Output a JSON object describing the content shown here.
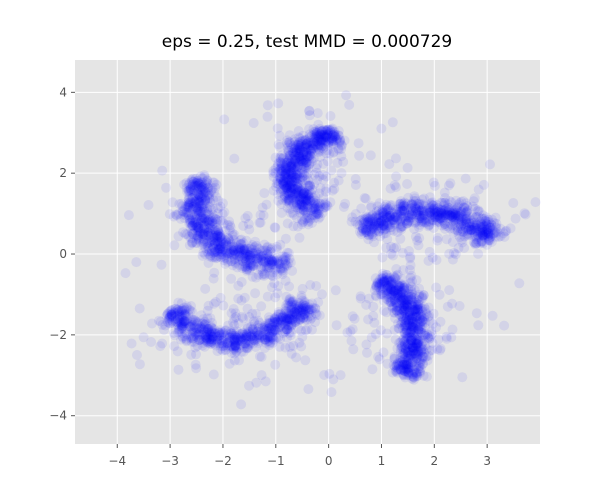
{
  "chart_data": {
    "type": "scatter",
    "title": "eps = 0.25, test MMD = 0.000729",
    "xlabel": "",
    "ylabel": "",
    "xlim": [
      -4.8,
      4.0
    ],
    "ylim": [
      -4.7,
      4.8
    ],
    "xticks": [
      -4,
      -3,
      -2,
      -1,
      0,
      1,
      2,
      3
    ],
    "yticks": [
      -4,
      -2,
      0,
      2,
      4
    ],
    "xtick_labels": [
      "−4",
      "−3",
      "−2",
      "−1",
      "0",
      "1",
      "2",
      "3"
    ],
    "ytick_labels": [
      "−4",
      "−2",
      "0",
      "2",
      "4"
    ],
    "grid": true,
    "legend": false,
    "style": "ggplot",
    "series": [
      {
        "marker_color": "#0000ff",
        "marker_alpha": 0.08,
        "description_shape": "five-arm pinwheel",
        "arms": [
          {
            "points": [
              [
                0.2,
                2.95
              ],
              [
                -0.3,
                2.8
              ],
              [
                -0.65,
                2.4
              ],
              [
                -0.75,
                1.95
              ],
              [
                -0.7,
                1.55
              ],
              [
                -0.4,
                1.2
              ],
              [
                -0.15,
                1.05
              ]
            ]
          },
          {
            "points": [
              [
                3.1,
                0.35
              ],
              [
                2.8,
                0.7
              ],
              [
                2.3,
                0.95
              ],
              [
                1.8,
                1.05
              ],
              [
                1.3,
                1.0
              ],
              [
                0.9,
                0.8
              ],
              [
                0.6,
                0.6
              ]
            ]
          },
          {
            "points": [
              [
                1.45,
                -3.0
              ],
              [
                1.6,
                -2.45
              ],
              [
                1.65,
                -1.8
              ],
              [
                1.55,
                -1.3
              ],
              [
                1.3,
                -0.9
              ],
              [
                1.0,
                -0.6
              ]
            ]
          },
          {
            "points": [
              [
                -3.0,
                -1.4
              ],
              [
                -2.5,
                -1.95
              ],
              [
                -1.9,
                -2.15
              ],
              [
                -1.3,
                -2.05
              ],
              [
                -0.75,
                -1.65
              ],
              [
                -0.35,
                -1.2
              ]
            ]
          },
          {
            "points": [
              [
                -2.35,
                1.85
              ],
              [
                -2.5,
                1.4
              ],
              [
                -2.45,
                0.8
              ],
              [
                -2.2,
                0.3
              ],
              [
                -1.7,
                0.0
              ],
              [
                -1.2,
                -0.15
              ],
              [
                -0.8,
                -0.3
              ]
            ]
          }
        ]
      }
    ]
  }
}
